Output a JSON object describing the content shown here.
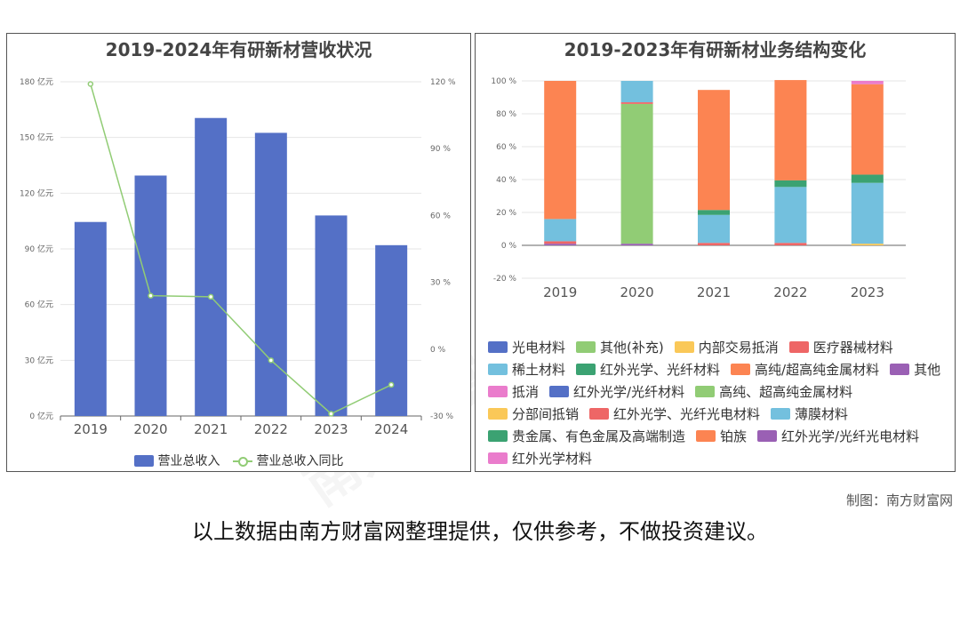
{
  "left_chart": {
    "title": "2019-2024年有研新材营收状况",
    "legend": {
      "bar_label": "营业总收入",
      "line_label": "营业总收入同比"
    },
    "colors": {
      "bar": "#5470c6",
      "line": "#91cc75"
    },
    "y_left_ticks": [
      "0 亿元",
      "30 亿元",
      "60 亿元",
      "90 亿元",
      "120 亿元",
      "150 亿元",
      "180 亿元"
    ],
    "y_right_ticks": [
      "-30 %",
      "0 %",
      "30 %",
      "60 %",
      "90 %",
      "120 %"
    ]
  },
  "right_chart": {
    "title": "2019-2023年有研新材业务结构变化",
    "y_ticks": [
      "-20 %",
      "0 %",
      "20 %",
      "40 %",
      "60 %",
      "80 %",
      "100 %"
    ]
  },
  "footer": {
    "credit": "制图：南方财富网",
    "disclaimer": "以上数据由南方财富网整理提供，仅供参考，不做投资建议。"
  },
  "chart_data": [
    {
      "type": "bar",
      "title": "2019-2024年有研新材营收状况",
      "categories": [
        "2019",
        "2020",
        "2021",
        "2022",
        "2023",
        "2024"
      ],
      "series": [
        {
          "name": "营业总收入",
          "type": "bar",
          "axis": "left",
          "unit": "亿元",
          "values": [
            104.5,
            129.5,
            160.5,
            152.5,
            108,
            92
          ]
        },
        {
          "name": "营业总收入同比",
          "type": "line",
          "axis": "right",
          "unit": "%",
          "values": [
            119,
            24,
            23.5,
            -5,
            -29,
            -16
          ]
        }
      ],
      "ylim_left": [
        0,
        180
      ],
      "ylim_right": [
        -30,
        120
      ],
      "legend_position": "bottom",
      "grid": true
    },
    {
      "type": "bar",
      "stacked": true,
      "title": "2019-2023年有研新材业务结构变化",
      "categories": [
        "2019",
        "2020",
        "2021",
        "2022",
        "2023"
      ],
      "ylim": [
        -20,
        100
      ],
      "unit": "%",
      "legend_position": "bottom",
      "series": [
        {
          "name": "光电材料",
          "color": "#5470c6",
          "values": [
            0,
            0,
            0,
            0,
            0
          ]
        },
        {
          "name": "其他(补充)",
          "color": "#91cc75",
          "values": [
            0,
            0,
            0,
            0,
            0
          ]
        },
        {
          "name": "内部交易抵消",
          "color": "#fac858",
          "values": [
            0,
            0,
            0,
            0,
            1
          ]
        },
        {
          "name": "医疗器械材料",
          "color": "#ee6666",
          "values": [
            0,
            0,
            0,
            0,
            0
          ]
        },
        {
          "name": "稀土材料",
          "color": "#73c0de",
          "values": [
            0,
            0,
            0,
            0,
            0
          ]
        },
        {
          "name": "红外光学、光纤材料",
          "color": "#3ba272",
          "values": [
            0,
            0,
            0,
            0,
            0
          ]
        },
        {
          "name": "高纯/超高纯金属材料",
          "color": "#fc8452",
          "values": [
            0,
            0,
            0,
            0,
            0
          ]
        },
        {
          "name": "其他",
          "color": "#9a60b4",
          "values": [
            1,
            1,
            0,
            0,
            0
          ]
        },
        {
          "name": "抵消",
          "color": "#ea7ccc",
          "values": [
            0,
            0,
            0,
            0,
            0
          ]
        },
        {
          "name": "红外光学/光纤材料",
          "color": "#5470c6",
          "values": [
            0,
            0,
            0,
            0,
            0
          ]
        },
        {
          "name": "高纯、超高纯金属材料",
          "color": "#91cc75",
          "values": [
            0,
            85,
            0,
            0,
            0
          ]
        },
        {
          "name": "分部间抵销",
          "color": "#fac858",
          "values": [
            0,
            0,
            0,
            0,
            0
          ]
        },
        {
          "name": "红外光学、光纤光电材料",
          "color": "#ee6666",
          "values": [
            1.5,
            1,
            1.5,
            1.5,
            0
          ]
        },
        {
          "name": "薄膜材料",
          "color": "#73c0de",
          "values": [
            13.5,
            13,
            17,
            34,
            37
          ]
        },
        {
          "name": "贵金属、有色金属及高端制造",
          "color": "#3ba272",
          "values": [
            0,
            0,
            3,
            4,
            5
          ]
        },
        {
          "name": "铂族",
          "color": "#fc8452",
          "values": [
            84,
            0,
            73,
            61,
            55
          ]
        },
        {
          "name": "红外光学/光纤光电材料",
          "color": "#9a60b4",
          "values": [
            0,
            0,
            0,
            0,
            0
          ]
        },
        {
          "name": "红外光学材料",
          "color": "#ea7ccc",
          "values": [
            0,
            0,
            0,
            0,
            2
          ]
        }
      ]
    }
  ]
}
